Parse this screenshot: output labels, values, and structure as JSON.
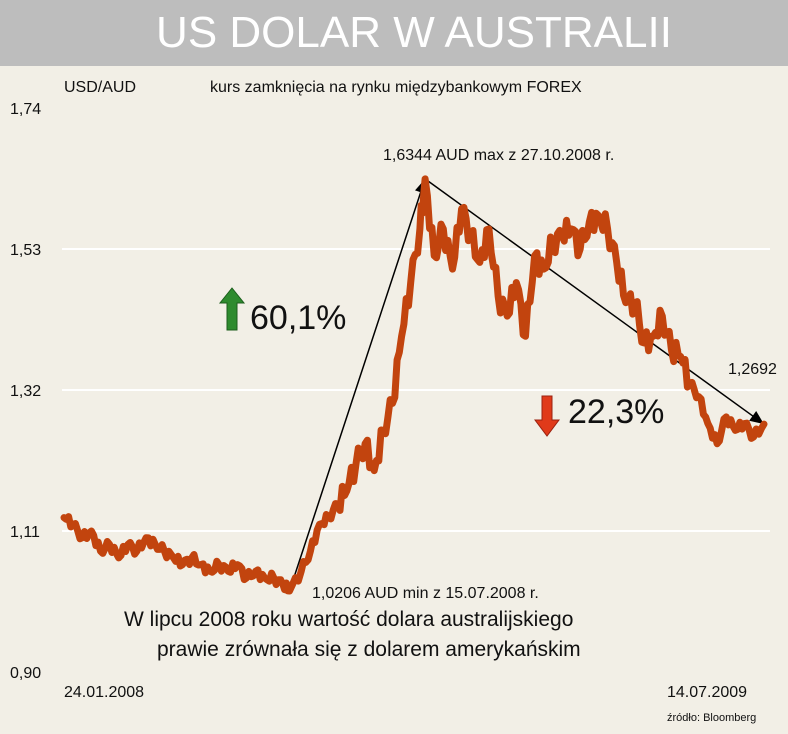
{
  "title": "US DOLAR W AUSTRALII",
  "source": "źródło: Bloomberg",
  "colors": {
    "background": "#f2efe6",
    "title_band": "#bdbdbd",
    "series": "#c2440e",
    "up_arrow": "#2e8b2e",
    "down_arrow": "#e03a1a",
    "gridline": "#ffffff"
  },
  "annotations": {
    "max": "1,6344 AUD max z 27.10.2008 r.",
    "min": "1,0206 AUD min z 15.07.2008 r.",
    "last": "1,2692",
    "rise": "60,1%",
    "fall": "22,3%",
    "note_line1": "W lipcu 2008 roku wartość dolara australijskiego",
    "note_line2": "prawie zrównała się z dolarem amerykańskim"
  },
  "chart_data": {
    "type": "line",
    "title": "US DOLAR W AUSTRALII",
    "subtitle": "kurs zamknięcia na rynku międzybankowym FOREX",
    "ylabel": "USD/AUD",
    "xlabel": "",
    "x_start_label": "24.01.2008",
    "x_end_label": "14.07.2009",
    "ylim": [
      0.9,
      1.74
    ],
    "yticks": [
      0.9,
      1.11,
      1.32,
      1.53,
      1.74
    ],
    "ytick_labels": [
      "0,90",
      "1,11",
      "1,32",
      "1,53",
      "1,74"
    ],
    "grid": "horizontal",
    "series": [
      {
        "x": [
          "2008-01-24",
          "2008-01-31",
          "2008-02-07",
          "2008-02-14",
          "2008-02-21",
          "2008-02-28",
          "2008-03-06",
          "2008-03-13",
          "2008-03-20",
          "2008-03-27",
          "2008-04-03",
          "2008-04-10",
          "2008-04-17",
          "2008-04-24",
          "2008-05-01",
          "2008-05-08",
          "2008-05-15",
          "2008-05-22",
          "2008-05-29",
          "2008-06-05",
          "2008-06-12",
          "2008-06-19",
          "2008-06-26",
          "2008-07-03",
          "2008-07-10",
          "2008-07-15",
          "2008-07-24",
          "2008-07-31",
          "2008-08-07",
          "2008-08-14",
          "2008-08-21",
          "2008-08-28",
          "2008-09-04",
          "2008-09-11",
          "2008-09-18",
          "2008-09-25",
          "2008-10-02",
          "2008-10-09",
          "2008-10-16",
          "2008-10-23",
          "2008-10-27",
          "2008-11-03",
          "2008-11-10",
          "2008-11-17",
          "2008-11-24",
          "2008-12-01",
          "2008-12-08",
          "2008-12-15",
          "2008-12-22",
          "2008-12-29",
          "2009-01-05",
          "2009-01-12",
          "2009-01-19",
          "2009-01-26",
          "2009-02-02",
          "2009-02-09",
          "2009-02-16",
          "2009-02-23",
          "2009-03-02",
          "2009-03-09",
          "2009-03-16",
          "2009-03-23",
          "2009-03-30",
          "2009-04-06",
          "2009-04-13",
          "2009-04-20",
          "2009-04-27",
          "2009-05-04",
          "2009-05-11",
          "2009-05-18",
          "2009-05-25",
          "2009-06-01",
          "2009-06-08",
          "2009-06-15",
          "2009-06-22",
          "2009-06-29",
          "2009-07-06",
          "2009-07-14"
        ],
        "values": [
          1.13,
          1.12,
          1.1,
          1.11,
          1.08,
          1.09,
          1.07,
          1.09,
          1.08,
          1.1,
          1.09,
          1.08,
          1.07,
          1.06,
          1.07,
          1.06,
          1.05,
          1.06,
          1.05,
          1.06,
          1.04,
          1.05,
          1.04,
          1.04,
          1.03,
          1.0206,
          1.05,
          1.08,
          1.12,
          1.13,
          1.15,
          1.17,
          1.21,
          1.24,
          1.2,
          1.26,
          1.3,
          1.4,
          1.48,
          1.56,
          1.6344,
          1.52,
          1.56,
          1.5,
          1.59,
          1.55,
          1.51,
          1.56,
          1.46,
          1.43,
          1.48,
          1.4,
          1.52,
          1.5,
          1.54,
          1.55,
          1.56,
          1.53,
          1.57,
          1.58,
          1.56,
          1.51,
          1.45,
          1.45,
          1.39,
          1.4,
          1.43,
          1.38,
          1.37,
          1.33,
          1.31,
          1.27,
          1.24,
          1.28,
          1.26,
          1.27,
          1.25,
          1.2692
        ]
      }
    ]
  }
}
